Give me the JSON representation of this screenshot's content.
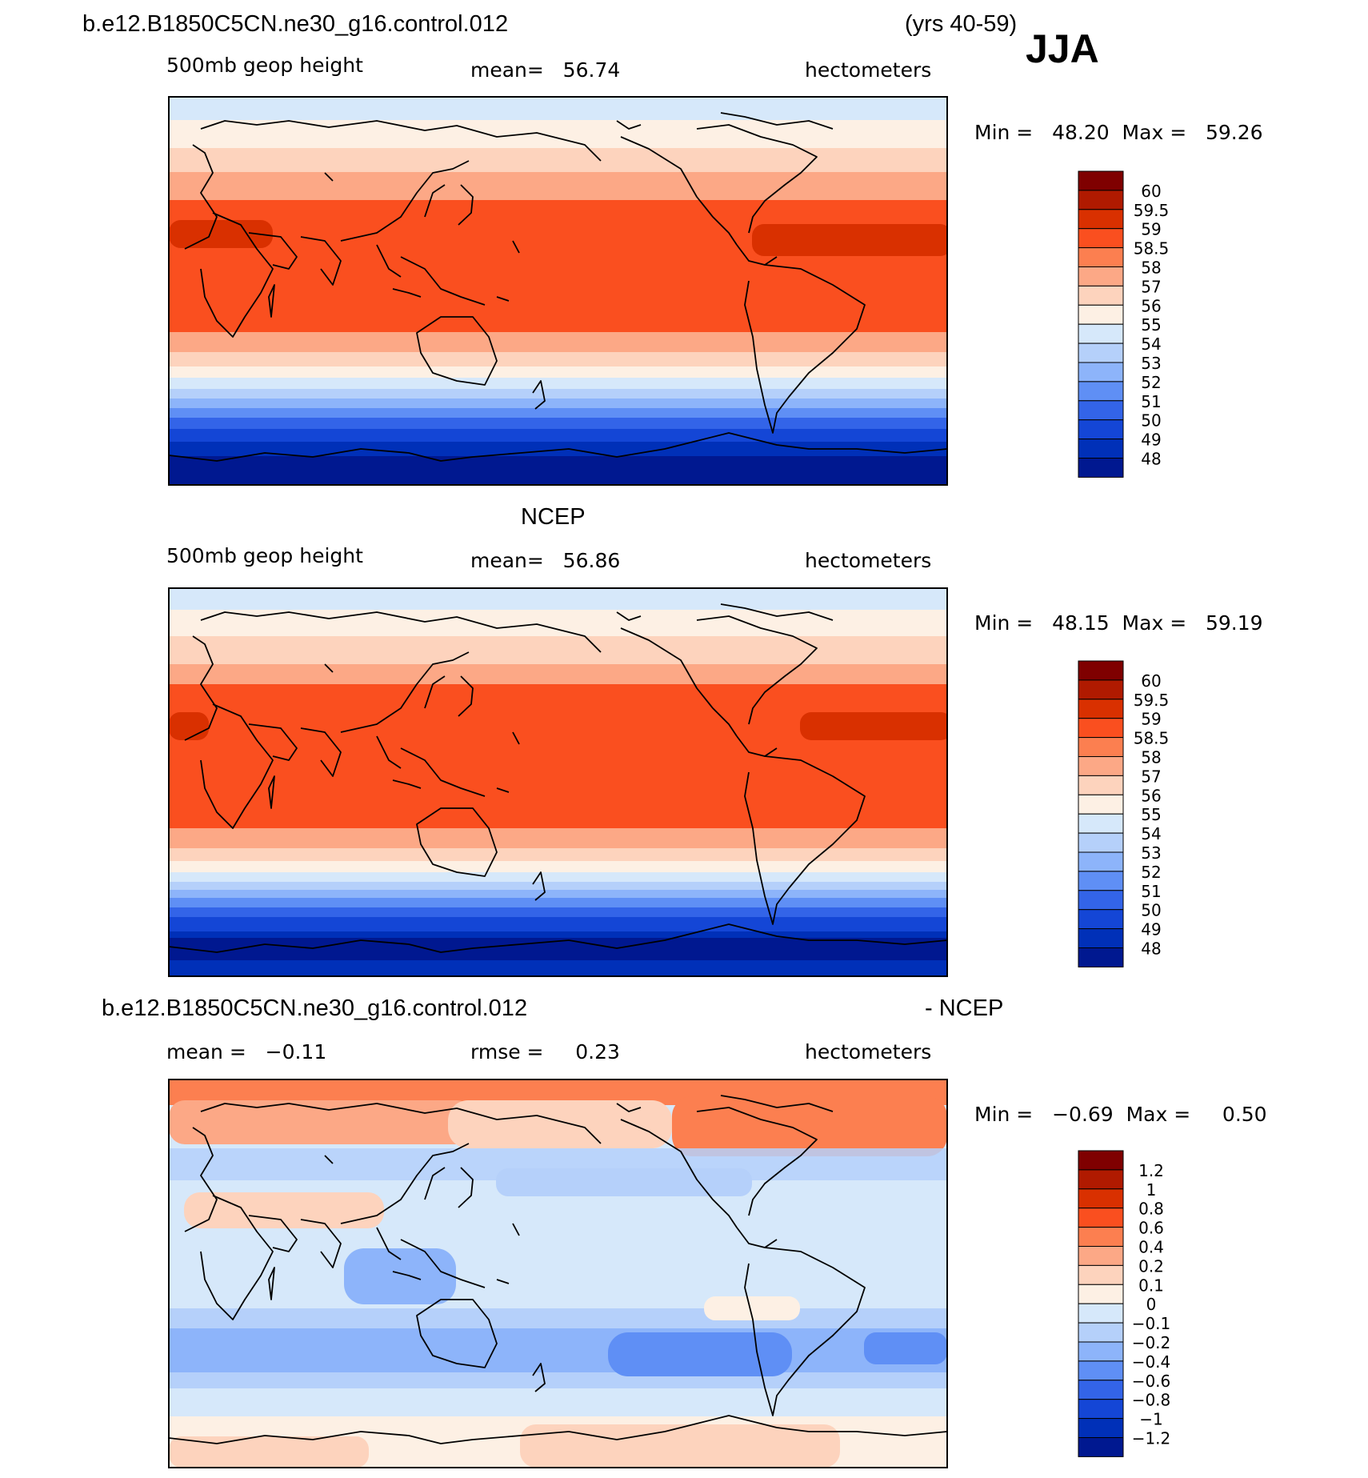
{
  "header": {
    "case_name": "b.e12.B1850C5CN.ne30_g16.control.012",
    "years": "(yrs 40-59)",
    "season": "JJA"
  },
  "panels": [
    {
      "id": "model",
      "title": "",
      "variable": "500mb geop height",
      "stat_text": "mean=   56.74",
      "units": "hectometers",
      "range_text": "Min =   48.20  Max =   59.26",
      "palette": "height",
      "colorbar_labels": [
        "60",
        "59.5",
        "59",
        "58.5",
        "58",
        "57",
        "56",
        "55",
        "54",
        "53",
        "52",
        "51",
        "50",
        "49",
        "48"
      ]
    },
    {
      "id": "obs",
      "title": "NCEP",
      "variable": "500mb geop height",
      "stat_text": "mean=   56.86",
      "units": "hectometers",
      "range_text": "Min =   48.15  Max =   59.19",
      "palette": "height",
      "colorbar_labels": [
        "60",
        "59.5",
        "59",
        "58.5",
        "58",
        "57",
        "56",
        "55",
        "54",
        "53",
        "52",
        "51",
        "50",
        "49",
        "48"
      ]
    },
    {
      "id": "diff",
      "title": "b.e12.B1850C5CN.ne30_g16.control.012",
      "title_right": "- NCEP",
      "variable": "mean =   −0.11",
      "stat_text": "rmse =     0.23",
      "units": "hectometers",
      "range_text": "Min =   −0.69  Max =     0.50",
      "palette": "diff",
      "colorbar_labels": [
        "1.2",
        "1",
        "0.8",
        "0.6",
        "0.4",
        "0.2",
        "0.1",
        "0",
        "−0.1",
        "−0.2",
        "−0.4",
        "−0.6",
        "−0.8",
        "−1",
        "−1.2"
      ]
    }
  ],
  "colors": {
    "height": [
      "#7f0000",
      "#b01a00",
      "#d93000",
      "#fa4f1f",
      "#fc7f50",
      "#fca886",
      "#fdd3bd",
      "#fdf0e4",
      "#d6e8fa",
      "#b5d0fa",
      "#8db4fa",
      "#5f8ff5",
      "#3364e8",
      "#1446d6",
      "#0030b8",
      "#001890"
    ],
    "diff": [
      "#7f0000",
      "#b01a00",
      "#d93000",
      "#fa4f1f",
      "#fc7f50",
      "#fca886",
      "#fdd3bd",
      "#fdf0e4",
      "#d6e8fa",
      "#b5d0fa",
      "#8db4fa",
      "#5f8ff5",
      "#3364e8",
      "#1446d6",
      "#0030b8",
      "#001890"
    ]
  }
}
